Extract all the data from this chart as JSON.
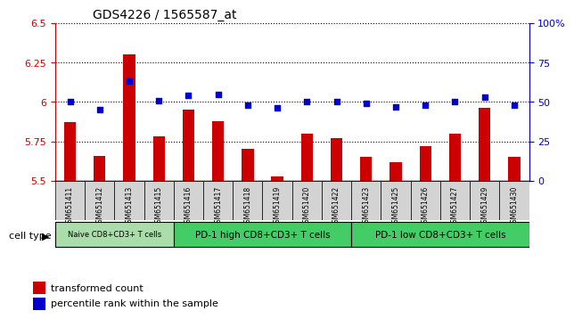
{
  "title": "GDS4226 / 1565587_at",
  "samples": [
    "GSM651411",
    "GSM651412",
    "GSM651413",
    "GSM651415",
    "GSM651416",
    "GSM651417",
    "GSM651418",
    "GSM651419",
    "GSM651420",
    "GSM651422",
    "GSM651423",
    "GSM651425",
    "GSM651426",
    "GSM651427",
    "GSM651429",
    "GSM651430"
  ],
  "transformed_count": [
    5.87,
    5.66,
    6.3,
    5.78,
    5.95,
    5.88,
    5.7,
    5.53,
    5.8,
    5.77,
    5.65,
    5.62,
    5.72,
    5.8,
    5.96,
    5.65
  ],
  "percentile_rank": [
    50,
    45,
    63,
    51,
    54,
    55,
    48,
    46,
    50,
    50,
    49,
    47,
    48,
    50,
    53,
    48
  ],
  "ylim_left": [
    5.5,
    6.5
  ],
  "ylim_right": [
    0,
    100
  ],
  "yticks_left": [
    5.5,
    5.75,
    6.0,
    6.25,
    6.5
  ],
  "yticks_right": [
    0,
    25,
    50,
    75,
    100
  ],
  "ytick_labels_left": [
    "5.5",
    "5.75",
    "6",
    "6.25",
    "6.5"
  ],
  "ytick_labels_right": [
    "0",
    "25",
    "50",
    "75",
    "100%"
  ],
  "bar_color": "#cc0000",
  "dot_color": "#0000cc",
  "cell_type_groups": [
    {
      "label": "Naive CD8+CD3+ T cells",
      "color": "#90ee90",
      "start": 0,
      "end": 4
    },
    {
      "label": "PD-1 high CD8+CD3+ T cells",
      "color": "#00cc44",
      "start": 4,
      "end": 10
    },
    {
      "label": "PD-1 low CD8+CD3+ T cells",
      "color": "#00cc44",
      "start": 10,
      "end": 16
    }
  ],
  "cell_type_label": "cell type",
  "legend_bar_label": "transformed count",
  "legend_dot_label": "percentile rank within the sample",
  "grid_color": "#000000",
  "bg_color": "#ffffff",
  "plot_bg_color": "#ffffff",
  "bar_width": 0.4,
  "xlabel_bg": "#d3d3d3"
}
